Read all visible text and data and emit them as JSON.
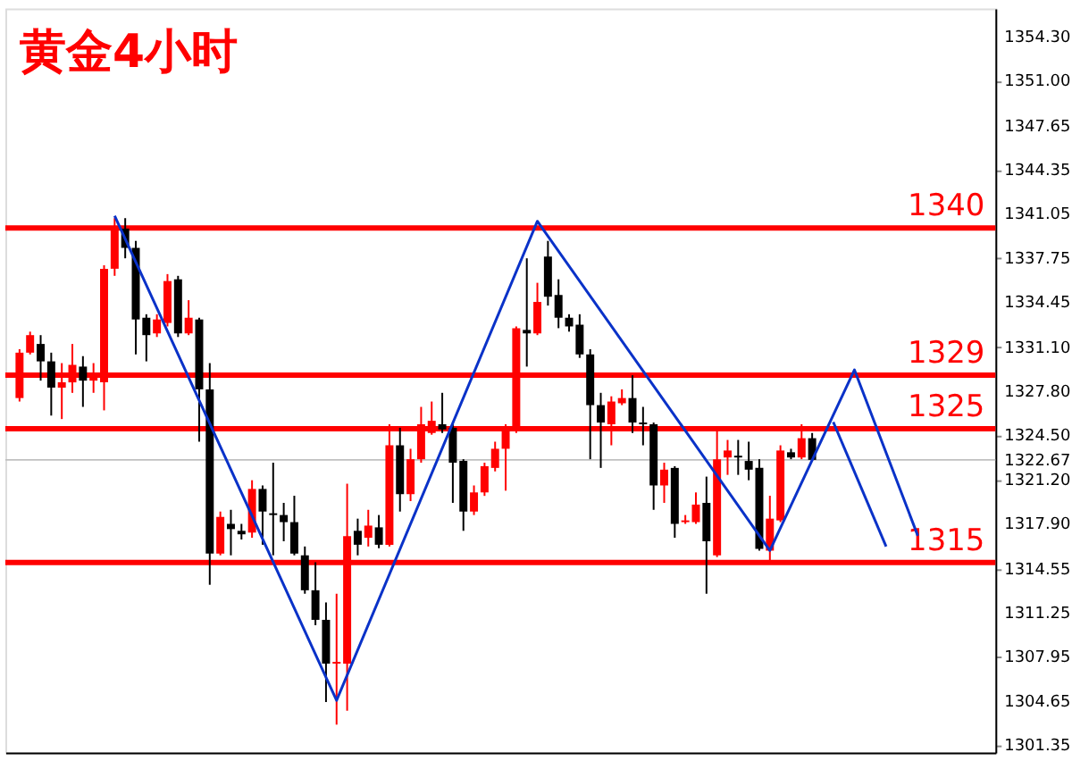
{
  "chart_data": {
    "type": "candlestick",
    "title": "黄金4小时",
    "categories": [
      null,
      null,
      null,
      null,
      null,
      null,
      null,
      null,
      null,
      null,
      null,
      null,
      null,
      null,
      null,
      null,
      null,
      null,
      null,
      null,
      null,
      null,
      null,
      null,
      null,
      null,
      null,
      null,
      null,
      null,
      null,
      null,
      null,
      null,
      null,
      null,
      null,
      null,
      null,
      null,
      null,
      null,
      null,
      null,
      null,
      null,
      null,
      null,
      null,
      null,
      null,
      null,
      null,
      null,
      null,
      null,
      null,
      null,
      null,
      null,
      null,
      null,
      null,
      null,
      null,
      null,
      null,
      null,
      null,
      null,
      null,
      null,
      null,
      null,
      null,
      null,
      null,
      null,
      null,
      null,
      null,
      null,
      null,
      null,
      null,
      null,
      null,
      null,
      null,
      null,
      null,
      null
    ],
    "ohlc": [
      [
        1327.29,
        1330.94,
        1327.03,
        1330.68
      ],
      [
        1330.68,
        1332.25,
        1330.55,
        1331.99
      ],
      [
        1331.33,
        1331.99,
        1328.59,
        1330.03
      ],
      [
        1330.03,
        1330.68,
        1325.98,
        1328.07
      ],
      [
        1328.07,
        1329.9,
        1325.72,
        1328.46
      ],
      [
        1328.46,
        1331.33,
        1327.68,
        1329.77
      ],
      [
        1329.64,
        1330.42,
        1326.63,
        1328.59
      ],
      [
        1328.59,
        1329.9,
        1327.68,
        1328.85
      ],
      [
        1328.46,
        1337.21,
        1326.37,
        1336.95
      ],
      [
        1336.95,
        1340.73,
        1336.42,
        1339.95
      ],
      [
        1339.95,
        1340.73,
        1337.73,
        1338.51
      ],
      [
        1338.51,
        1339.03,
        1330.55,
        1333.16
      ],
      [
        1333.29,
        1333.55,
        1330.03,
        1331.99
      ],
      [
        1332.12,
        1333.55,
        1331.85,
        1333.16
      ],
      [
        1332.9,
        1336.55,
        1332.64,
        1336.03
      ],
      [
        1336.16,
        1336.42,
        1331.85,
        1332.12
      ],
      [
        1332.12,
        1334.6,
        1331.99,
        1333.29
      ],
      [
        1333.16,
        1333.29,
        1324.03,
        1327.94
      ],
      [
        1327.94,
        1329.9,
        1313.34,
        1315.67
      ],
      [
        1315.67,
        1318.81,
        1315.54,
        1318.41
      ],
      [
        1317.89,
        1318.94,
        1315.54,
        1317.5
      ],
      [
        1317.37,
        1317.89,
        1316.72,
        1317.11
      ],
      [
        1317.24,
        1321.15,
        1316.85,
        1320.5
      ],
      [
        1320.5,
        1320.76,
        1316.33,
        1318.81
      ],
      [
        1318.68,
        1322.46,
        1315.54,
        1318.55
      ],
      [
        1318.55,
        1319.46,
        1316.59,
        1318.02
      ],
      [
        1318.02,
        1319.99,
        1315.54,
        1315.67
      ],
      [
        1315.54,
        1316.2,
        1312.67,
        1312.93
      ],
      [
        1312.93,
        1315.02,
        1310.32,
        1310.72
      ],
      [
        1310.72,
        1312.02,
        1304.58,
        1307.45
      ],
      [
        1307.45,
        1312.67,
        1302.89,
        1307.58
      ],
      [
        1307.45,
        1320.89,
        1303.93,
        1316.98
      ],
      [
        1317.37,
        1318.28,
        1315.54,
        1316.33
      ],
      [
        1316.85,
        1318.94,
        1316.2,
        1317.76
      ],
      [
        1317.63,
        1318.55,
        1316.07,
        1316.33
      ],
      [
        1316.33,
        1325.33,
        1316.2,
        1323.76
      ],
      [
        1323.76,
        1325.07,
        1318.81,
        1320.11
      ],
      [
        1320.11,
        1323.5,
        1319.59,
        1322.72
      ],
      [
        1322.72,
        1326.63,
        1322.46,
        1325.33
      ],
      [
        1324.68,
        1327.03,
        1324.55,
        1325.59
      ],
      [
        1325.33,
        1327.68,
        1324.68,
        1324.94
      ],
      [
        1325.07,
        1325.33,
        1319.46,
        1322.46
      ],
      [
        1322.59,
        1322.72,
        1317.37,
        1318.81
      ],
      [
        1318.81,
        1320.76,
        1318.55,
        1320.24
      ],
      [
        1320.24,
        1322.46,
        1319.98,
        1322.2
      ],
      [
        1322.07,
        1324.03,
        1321.81,
        1323.5
      ],
      [
        1323.5,
        1325.33,
        1320.37,
        1324.81
      ],
      [
        1324.81,
        1332.64,
        1324.68,
        1332.51
      ],
      [
        1332.38,
        1337.73,
        1329.64,
        1332.12
      ],
      [
        1332.12,
        1335.9,
        1331.99,
        1334.47
      ],
      [
        1337.86,
        1339.03,
        1334.2,
        1334.86
      ],
      [
        1334.99,
        1336.16,
        1332.51,
        1333.29
      ],
      [
        1333.29,
        1333.55,
        1332.25,
        1332.64
      ],
      [
        1332.77,
        1333.55,
        1330.29,
        1330.55
      ],
      [
        1330.55,
        1330.94,
        1322.72,
        1326.76
      ],
      [
        1326.76,
        1327.68,
        1322.07,
        1325.46
      ],
      [
        1325.33,
        1327.42,
        1323.76,
        1327.03
      ],
      [
        1326.9,
        1327.94,
        1326.76,
        1327.29
      ],
      [
        1327.29,
        1328.99,
        1324.68,
        1325.46
      ],
      [
        1325.46,
        1326.63,
        1323.76,
        1325.33
      ],
      [
        1325.33,
        1325.46,
        1318.94,
        1320.76
      ],
      [
        1320.76,
        1322.46,
        1319.46,
        1321.94
      ],
      [
        1322.07,
        1322.2,
        1316.85,
        1317.89
      ],
      [
        1318.02,
        1318.55,
        1317.89,
        1318.15
      ],
      [
        1318.02,
        1320.24,
        1317.89,
        1319.33
      ],
      [
        1319.46,
        1321.42,
        1312.67,
        1316.59
      ],
      [
        1315.54,
        1325.07,
        1315.41,
        1322.72
      ],
      [
        1322.85,
        1324.16,
        1321.55,
        1323.37
      ],
      [
        1322.98,
        1324.16,
        1321.55,
        1322.85
      ],
      [
        1322.59,
        1324.03,
        1321.15,
        1321.94
      ],
      [
        1322.07,
        1322.72,
        1315.89,
        1316.02
      ],
      [
        1315.89,
        1319.99,
        1315.02,
        1318.28
      ],
      [
        1318.15,
        1323.76,
        1318.02,
        1323.37
      ],
      [
        1323.24,
        1323.5,
        1322.72,
        1322.85
      ],
      [
        1322.85,
        1325.33,
        1322.72,
        1324.29
      ],
      [
        1324.29,
        1324.68,
        1322.59,
        1322.67
      ],
      null,
      null,
      null,
      null,
      null,
      null,
      null,
      null,
      null,
      null,
      null,
      null,
      null,
      null,
      null,
      null
    ],
    "colors": [
      "#ff0000",
      "#ff0000",
      "#000000",
      "#000000",
      "#ff0000",
      "#ff0000",
      "#000000",
      "#ff0000",
      "#ff0000",
      "#ff0000",
      "#000000",
      "#000000",
      "#000000",
      "#ff0000",
      "#ff0000",
      "#000000",
      "#ff0000",
      "#000000",
      "#000000",
      "#ff0000",
      "#000000",
      "#000000",
      "#ff0000",
      "#000000",
      "#000000",
      "#000000",
      "#000000",
      "#000000",
      "#000000",
      "#000000",
      "#ff0000",
      "#ff0000",
      "#000000",
      "#ff0000",
      "#000000",
      "#ff0000",
      "#000000",
      "#ff0000",
      "#ff0000",
      "#ff0000",
      "#000000",
      "#000000",
      "#000000",
      "#ff0000",
      "#ff0000",
      "#ff0000",
      "#ff0000",
      "#ff0000",
      "#000000",
      "#ff0000",
      "#000000",
      "#000000",
      "#000000",
      "#000000",
      "#000000",
      "#000000",
      "#ff0000",
      "#ff0000",
      "#000000",
      "#000000",
      "#000000",
      "#ff0000",
      "#000000",
      "#ff0000",
      "#ff0000",
      "#000000",
      "#ff0000",
      "#ff0000",
      "#000000",
      "#000000",
      "#000000",
      "#ff0000",
      "#ff0000",
      "#000000",
      "#ff0000",
      "#000000",
      null,
      null,
      null,
      null,
      null,
      null,
      null,
      null,
      null,
      null,
      null,
      null,
      null,
      null,
      null,
      null
    ],
    "series": [
      {
        "type": "line",
        "color": "#0a32c8",
        "values": [
          null,
          null,
          null,
          null,
          null,
          null,
          null,
          null,
          null,
          1340.9,
          null,
          null,
          null,
          null,
          null,
          null,
          null,
          null,
          null,
          null,
          null,
          null,
          null,
          null,
          null,
          null,
          null,
          null,
          null,
          null,
          1304.7,
          null,
          null,
          null,
          null,
          null,
          null,
          null,
          null,
          null,
          null,
          null,
          null,
          null,
          null,
          null,
          null,
          null,
          null,
          1340.5,
          null,
          null,
          null,
          null,
          null,
          null,
          null,
          null,
          null,
          null,
          null,
          null,
          null,
          null,
          null,
          null,
          null,
          null,
          null,
          null,
          null,
          1315.9,
          null,
          null,
          null,
          null,
          null,
          null,
          null,
          1329.4,
          null,
          null,
          null,
          null,
          null,
          1317.0,
          null,
          null,
          null,
          null,
          null,
          null
        ]
      },
      {
        "type": "line",
        "color": "#0a32c8",
        "values": [
          null,
          null,
          null,
          null,
          null,
          null,
          null,
          null,
          null,
          null,
          null,
          null,
          null,
          null,
          null,
          null,
          null,
          null,
          null,
          null,
          null,
          null,
          null,
          null,
          null,
          null,
          null,
          null,
          null,
          null,
          null,
          null,
          null,
          null,
          null,
          null,
          null,
          null,
          null,
          null,
          null,
          null,
          null,
          null,
          null,
          null,
          null,
          null,
          null,
          null,
          null,
          null,
          null,
          null,
          null,
          null,
          null,
          null,
          null,
          null,
          null,
          null,
          null,
          null,
          null,
          null,
          null,
          null,
          null,
          null,
          null,
          null,
          null,
          null,
          null,
          null,
          null,
          1325.5,
          null,
          null,
          null,
          null,
          1316.2,
          null,
          null,
          null,
          null,
          null,
          null,
          null,
          null,
          null
        ]
      }
    ],
    "ylim": [
      1300.8,
      1356.4
    ],
    "yticks": [
      {
        "value": 1354.3,
        "label": "1354.30"
      },
      {
        "value": 1351.0,
        "label": "1351.00"
      },
      {
        "value": 1347.65,
        "label": "1347.65"
      },
      {
        "value": 1344.35,
        "label": "1344.35"
      },
      {
        "value": 1341.05,
        "label": "1341.05"
      },
      {
        "value": 1337.75,
        "label": "1337.75"
      },
      {
        "value": 1334.45,
        "label": "1334.45"
      },
      {
        "value": 1331.1,
        "label": "1331.10"
      },
      {
        "value": 1327.8,
        "label": "1327.80"
      },
      {
        "value": 1324.5,
        "label": "1324.50"
      },
      {
        "value": 1322.67,
        "label": "1322.67"
      },
      {
        "value": 1321.2,
        "label": "1321.20"
      },
      {
        "value": 1317.9,
        "label": "1317.90"
      },
      {
        "value": 1314.55,
        "label": "1314.55"
      },
      {
        "value": 1311.25,
        "label": "1311.25"
      },
      {
        "value": 1307.95,
        "label": "1307.95"
      },
      {
        "value": 1304.65,
        "label": "1304.65"
      },
      {
        "value": 1301.35,
        "label": "1301.35"
      }
    ],
    "ref_lines": [
      {
        "axis": "y",
        "value": 1340,
        "label": "1340",
        "color": "#ff0000"
      },
      {
        "axis": "y",
        "value": 1329,
        "label": "1329",
        "color": "#ff0000"
      },
      {
        "axis": "y",
        "value": 1325,
        "label": "1325",
        "color": "#ff0000"
      },
      {
        "axis": "y",
        "value": 1315,
        "label": "1315",
        "color": "#ff0000"
      },
      {
        "axis": "y",
        "value": 1322.67,
        "color": "#c0c0c0"
      }
    ],
    "grid": false
  }
}
